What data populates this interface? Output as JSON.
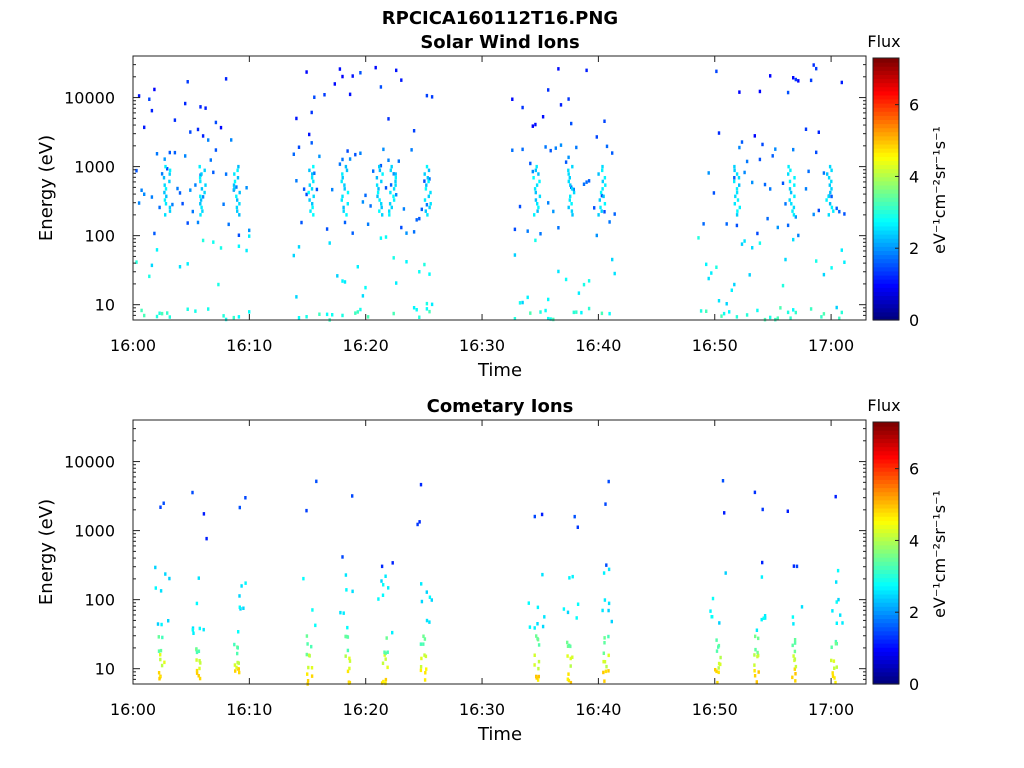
{
  "file_title": "RPCICA160112T16.PNG",
  "chart_data": [
    {
      "type": "heatmap",
      "title": "Solar Wind Ions",
      "xlabel": "Time",
      "ylabel": "Energy (eV)",
      "x_ticks": [
        "16:00",
        "16:10",
        "16:20",
        "16:30",
        "16:40",
        "16:50",
        "17:00"
      ],
      "x_range_minutes": [
        0,
        63
      ],
      "y_scale": "log",
      "y_ticks": [
        "10",
        "100",
        "1000",
        "10000"
      ],
      "y_range": [
        6,
        40000
      ],
      "colorbar": {
        "title": "Flux",
        "label": "eV⁻¹cm⁻²sr⁻¹s⁻¹",
        "range": [
          0,
          7.3
        ],
        "ticks": [
          "0",
          "2",
          "4",
          "6"
        ],
        "colormap": "jet"
      },
      "active_intervals_minutes": [
        [
          0.2,
          10.1
        ],
        [
          13.5,
          25.8
        ],
        [
          32.5,
          41.5
        ],
        [
          48.5,
          61.2
        ]
      ],
      "populations": [
        {
          "energy_range": [
            6,
            9
          ],
          "flux": 3.0
        },
        {
          "energy_range": [
            9,
            100
          ],
          "flux": 2.7
        },
        {
          "energy_range": [
            100,
            2500
          ],
          "flux": 1.7
        },
        {
          "energy_range": [
            2500,
            30000
          ],
          "flux": 1.2
        }
      ],
      "bright_streaks_minutes": [
        2.8,
        5.9,
        8.8,
        15.2,
        18.1,
        21.1,
        22.2,
        25.2,
        34.6,
        37.6,
        40.2,
        51.8,
        56.5,
        59.8
      ],
      "streak_energy_range": [
        200,
        1000
      ],
      "streak_flux": 2.5
    },
    {
      "type": "heatmap",
      "title": "Cometary Ions",
      "xlabel": "Time",
      "ylabel": "Energy (eV)",
      "x_ticks": [
        "16:00",
        "16:10",
        "16:20",
        "16:30",
        "16:40",
        "16:50",
        "17:00"
      ],
      "x_range_minutes": [
        0,
        63
      ],
      "y_scale": "log",
      "y_ticks": [
        "10",
        "100",
        "1000",
        "10000"
      ],
      "y_range": [
        6,
        40000
      ],
      "colorbar": {
        "title": "Flux",
        "label": "eV⁻¹cm⁻²sr⁻¹s⁻¹",
        "range": [
          0,
          7.3
        ],
        "ticks": [
          "0",
          "2",
          "4",
          "6"
        ],
        "colormap": "jet"
      },
      "bursts_minutes": [
        2.1,
        5.3,
        8.6,
        14.8,
        18.1,
        21.3,
        24.6,
        34.3,
        37.2,
        40.3,
        49.9,
        53.3,
        56.5,
        59.9
      ],
      "burst_profile": [
        {
          "energy_range": [
            6,
            10
          ],
          "flux": 4.8
        },
        {
          "energy_range": [
            10,
            16
          ],
          "flux": 4.2
        },
        {
          "energy_range": [
            16,
            30
          ],
          "flux": 3.4
        },
        {
          "energy_range": [
            30,
            300
          ],
          "flux": 2.6
        },
        {
          "energy_range": [
            300,
            6000
          ],
          "flux": 1.3
        }
      ]
    }
  ]
}
